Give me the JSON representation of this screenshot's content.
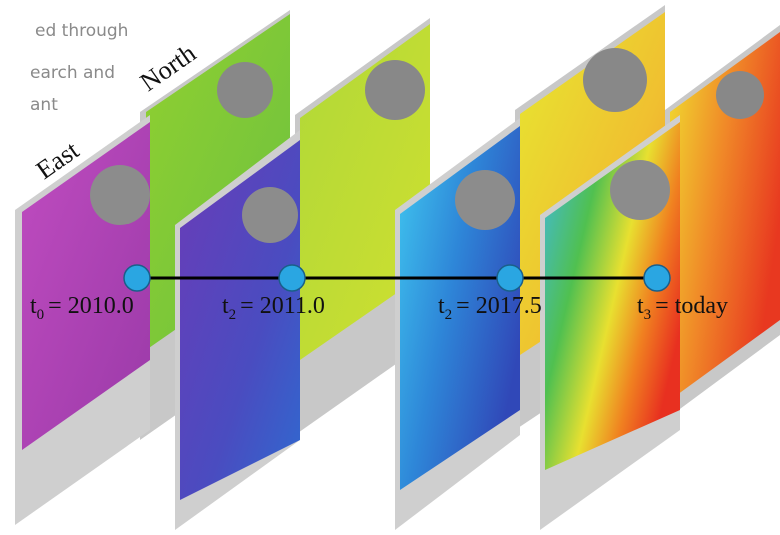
{
  "intro_text": {
    "lines": [
      "ed through",
      "earch and",
      "ant"
    ]
  },
  "panel_labels": {
    "north": "North",
    "east": "East"
  },
  "timeline": [
    {
      "var": "t",
      "sub": "0",
      "rest": "= 2010.0"
    },
    {
      "var": "t",
      "sub": "2",
      "rest": "= 2011.0"
    },
    {
      "var": "t",
      "sub": "2",
      "rest": "= 2017.5"
    },
    {
      "var": "t",
      "sub": "3",
      "rest": "= today"
    }
  ]
}
